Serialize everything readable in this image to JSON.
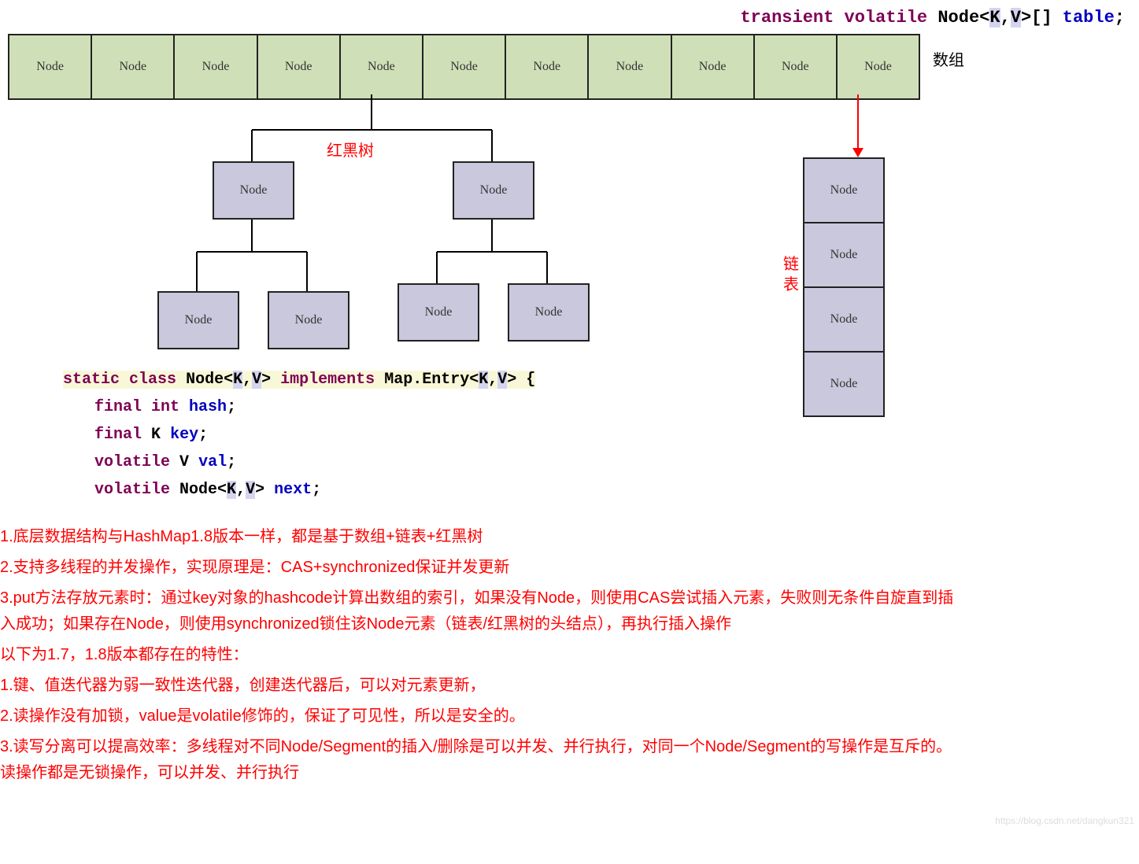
{
  "header_code": {
    "keywords": [
      "transient",
      "volatile"
    ],
    "type": "Node",
    "generics": [
      "K",
      "V"
    ],
    "array": "[]",
    "var": "table",
    "end": ";"
  },
  "array_label": "数组",
  "array_cells": [
    "Node",
    "Node",
    "Node",
    "Node",
    "Node",
    "Node",
    "Node",
    "Node",
    "Node",
    "Node",
    "Node"
  ],
  "tree_label": "红黑树",
  "linked_label_1": "链",
  "linked_label_2": "表",
  "tree_nodes": {
    "n1": "Node",
    "n2": "Node",
    "n3": "Node",
    "n4": "Node",
    "n5": "Node",
    "n6": "Node"
  },
  "linked_list": [
    "Node",
    "Node",
    "Node",
    "Node"
  ],
  "code_block": {
    "l1_kw1": "static",
    "l1_kw2": "class",
    "l1_type": "Node",
    "l1_gen1": "K",
    "l1_gen2": "V",
    "l1_kw3": "implements",
    "l1_tail": "Map.Entry<",
    "l1_g1": "K",
    "l1_mid": ",",
    "l1_g2": "V",
    "l1_end": "> {",
    "l2": "final int",
    "l2v": "hash",
    "l2e": ";",
    "l3a": "final",
    "l3t": "K",
    "l3v": "key",
    "l3e": ";",
    "l4a": "volatile",
    "l4t": "V",
    "l4v": "val",
    "l4e": ";",
    "l5a": "volatile",
    "l5t": "Node<",
    "l5g1": "K",
    "l5c": ",",
    "l5g2": "V",
    "l5tend": ">",
    "l5v": "next",
    "l5e": ";"
  },
  "notes": [
    "1.底层数据结构与HashMap1.8版本一样，都是基于数组+链表+红黑树",
    "2.支持多线程的并发操作，实现原理是：CAS+synchronized保证并发更新",
    "3.put方法存放元素时：通过key对象的hashcode计算出数组的索引，如果没有Node，则使用CAS尝试插入元素，失败则无条件自旋直到插入成功；如果存在Node，则使用synchronized锁住该Node元素（链表/红黑树的头结点），再执行插入操作",
    "以下为1.7，1.8版本都存在的特性：",
    "1.键、值迭代器为弱一致性迭代器，创建迭代器后，可以对元素更新，",
    "2.读操作没有加锁，value是volatile修饰的，保证了可见性，所以是安全的。",
    "3.读写分离可以提高效率：多线程对不同Node/Segment的插入/删除是可以并发、并行执行，对同一个Node/Segment的写操作是互斥的。读操作都是无锁操作，可以并发、并行执行"
  ],
  "watermark": "https://blog.csdn.net/dangkun321",
  "colors": {
    "array_cell_bg": "#cfe0b8",
    "node_bg": "#c9c8dc",
    "border": "#222222",
    "red": "#ff0000",
    "keyword": "#7f0055",
    "var": "#0000c0",
    "generic_bg": "#d4d4f0"
  }
}
